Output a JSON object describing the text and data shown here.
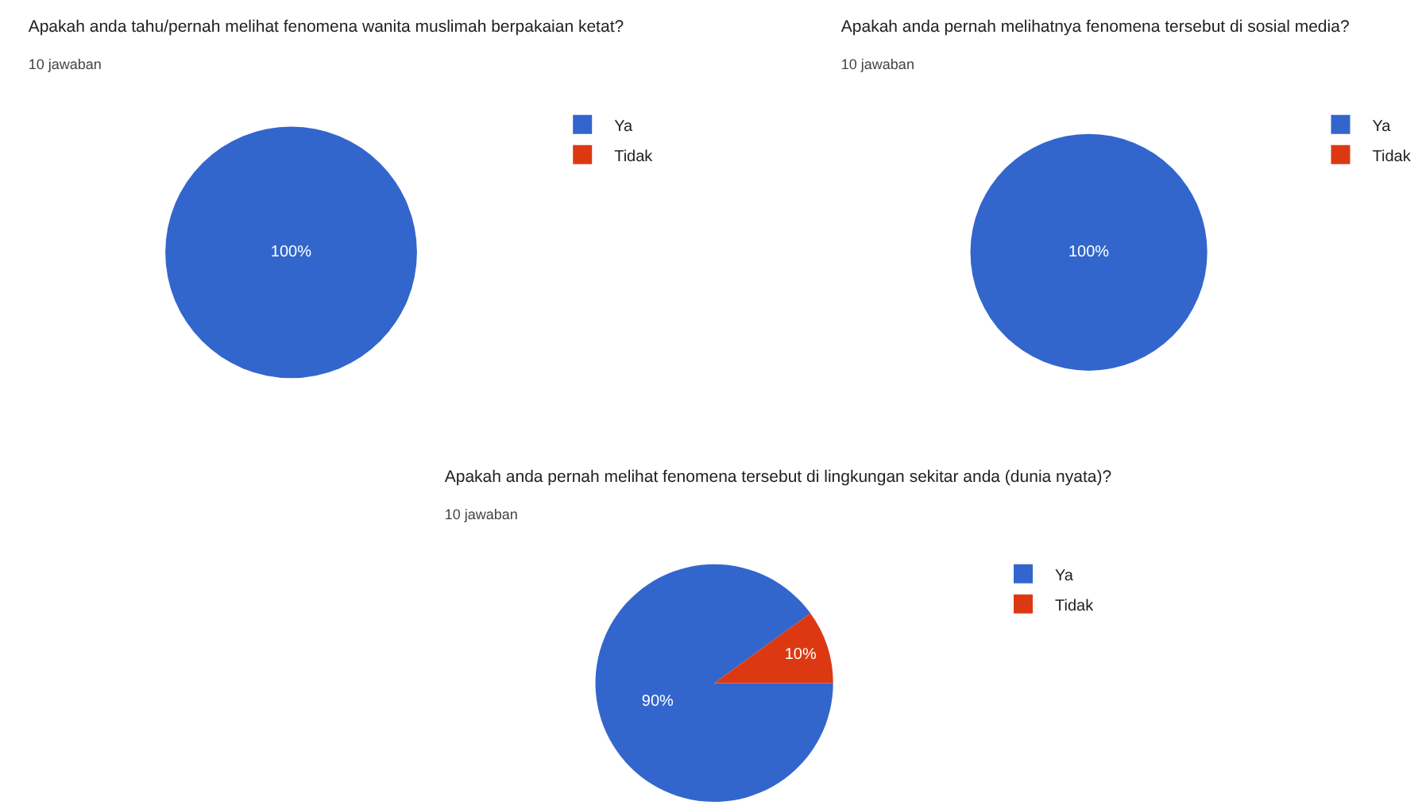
{
  "chart_data": [
    {
      "type": "pie",
      "title": "Apakah anda tahu/pernah melihat fenomena wanita muslimah berpakaian ketat?",
      "subtitle": "10 jawaban",
      "categories": [
        "Ya",
        "Tidak"
      ],
      "values": [
        100,
        0
      ],
      "colors": [
        "#3366cc",
        "#dc3912"
      ],
      "value_labels": [
        "100%",
        null
      ],
      "legend": "right"
    },
    {
      "type": "pie",
      "title": "Apakah anda pernah melihatnya fenomena tersebut di sosial media?",
      "subtitle": "10 jawaban",
      "categories": [
        "Ya",
        "Tidak"
      ],
      "values": [
        100,
        0
      ],
      "colors": [
        "#3366cc",
        "#dc3912"
      ],
      "value_labels": [
        "100%",
        null
      ],
      "legend": "right"
    },
    {
      "type": "pie",
      "title": "Apakah anda pernah melihat fenomena tersebut di lingkungan sekitar anda (dunia nyata)?",
      "subtitle": "10 jawaban",
      "categories": [
        "Ya",
        "Tidak"
      ],
      "values": [
        90,
        10
      ],
      "colors": [
        "#3366cc",
        "#dc3912"
      ],
      "value_labels": [
        "90%",
        "10%"
      ],
      "legend": "right"
    }
  ]
}
